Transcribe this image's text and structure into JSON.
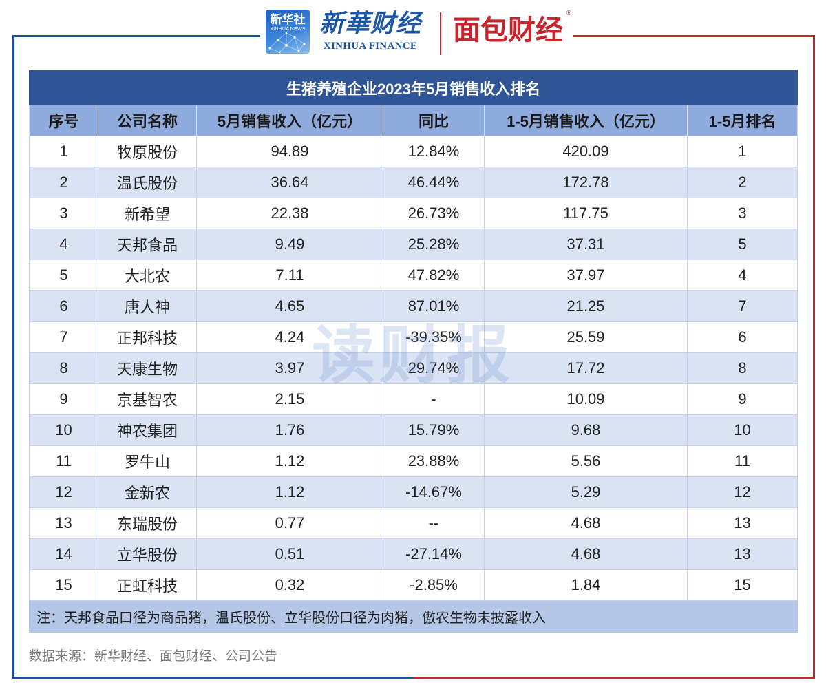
{
  "logos": {
    "xinhua_news": {
      "cn": "新华社",
      "en": "XINHUA NEWS"
    },
    "xinhua_finance": {
      "cn": "新華财经",
      "en": "XINHUA FINANCE"
    },
    "mianbao": {
      "cn": "面包财经",
      "mark": "®"
    }
  },
  "watermark": "读财报",
  "colors": {
    "title_bg": "#2f5597",
    "header_bg": "#8faadc",
    "alt_row_bg": "#dae3f3",
    "note_bg": "#b4c7e7",
    "frame_blue": "#1f4e9a",
    "frame_red": "#c8262d"
  },
  "chart_data": {
    "type": "table",
    "title": "生猪养殖企业2023年5月销售收入排名",
    "columns": [
      "序号",
      "公司名称",
      "5月销售收入（亿元）",
      "同比",
      "1-5月销售收入（亿元）",
      "1-5月排名"
    ],
    "rows": [
      {
        "no": 1,
        "company": "牧原股份",
        "may_revenue": 94.89,
        "yoy": "12.84%",
        "ytd_revenue": 420.09,
        "ytd_rank": 1
      },
      {
        "no": 2,
        "company": "温氏股份",
        "may_revenue": 36.64,
        "yoy": "46.44%",
        "ytd_revenue": 172.78,
        "ytd_rank": 2
      },
      {
        "no": 3,
        "company": "新希望",
        "may_revenue": 22.38,
        "yoy": "26.73%",
        "ytd_revenue": 117.75,
        "ytd_rank": 3
      },
      {
        "no": 4,
        "company": "天邦食品",
        "may_revenue": 9.49,
        "yoy": "25.28%",
        "ytd_revenue": 37.31,
        "ytd_rank": 5
      },
      {
        "no": 5,
        "company": "大北农",
        "may_revenue": 7.11,
        "yoy": "47.82%",
        "ytd_revenue": 37.97,
        "ytd_rank": 4
      },
      {
        "no": 6,
        "company": "唐人神",
        "may_revenue": 4.65,
        "yoy": "87.01%",
        "ytd_revenue": 21.25,
        "ytd_rank": 7
      },
      {
        "no": 7,
        "company": "正邦科技",
        "may_revenue": 4.24,
        "yoy": "-39.35%",
        "ytd_revenue": 25.59,
        "ytd_rank": 6
      },
      {
        "no": 8,
        "company": "天康生物",
        "may_revenue": 3.97,
        "yoy": "29.74%",
        "ytd_revenue": 17.72,
        "ytd_rank": 8
      },
      {
        "no": 9,
        "company": "京基智农",
        "may_revenue": 2.15,
        "yoy": "-",
        "ytd_revenue": 10.09,
        "ytd_rank": 9
      },
      {
        "no": 10,
        "company": "神农集团",
        "may_revenue": 1.76,
        "yoy": "15.79%",
        "ytd_revenue": 9.68,
        "ytd_rank": 10
      },
      {
        "no": 11,
        "company": "罗牛山",
        "may_revenue": 1.12,
        "yoy": "23.88%",
        "ytd_revenue": 5.56,
        "ytd_rank": 11
      },
      {
        "no": 12,
        "company": "金新农",
        "may_revenue": 1.12,
        "yoy": "-14.67%",
        "ytd_revenue": 5.29,
        "ytd_rank": 12
      },
      {
        "no": 13,
        "company": "东瑞股份",
        "may_revenue": 0.77,
        "yoy": "--",
        "ytd_revenue": 4.68,
        "ytd_rank": 13
      },
      {
        "no": 14,
        "company": "立华股份",
        "may_revenue": 0.51,
        "yoy": "-27.14%",
        "ytd_revenue": 4.68,
        "ytd_rank": 13
      },
      {
        "no": 15,
        "company": "正虹科技",
        "may_revenue": 0.32,
        "yoy": "-2.85%",
        "ytd_revenue": 1.84,
        "ytd_rank": 15
      }
    ],
    "note": "注：天邦食品口径为商品猪，温氏股份、立华股份口径为肉猪，傲农生物未披露收入"
  },
  "source": "数据来源：新华财经、面包财经、公司公告"
}
